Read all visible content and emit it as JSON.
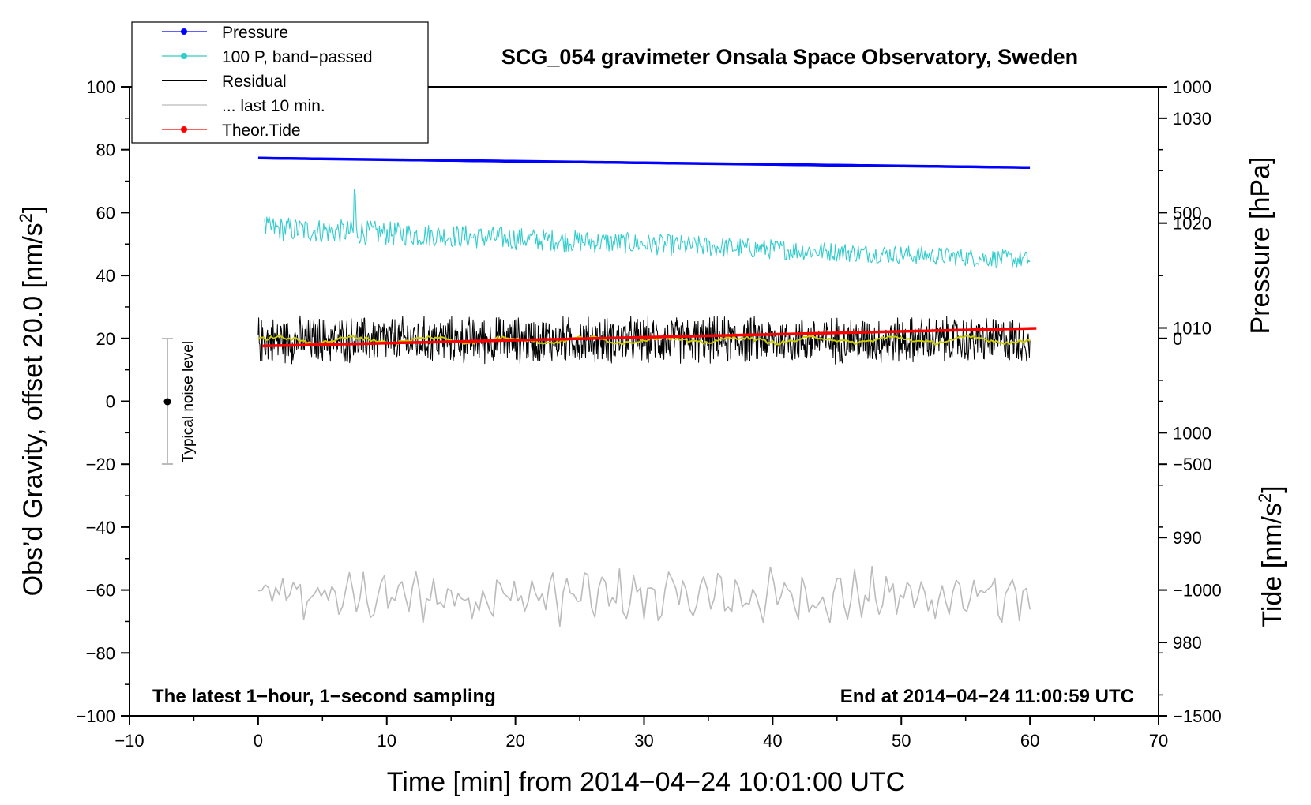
{
  "chart_data": {
    "type": "line",
    "title": "SCG_054 gravimeter Onsala Space Observatory, Sweden",
    "xlabel": "Time [min] from 2014−04−24 10:01:00 UTC",
    "ylabel_left_main": "Obs’d Gravity, offset 20.0 [nm/s",
    "ylabel_left_sup": "2",
    "ylabel_left_end": "]",
    "ylabel_right_top": "Pressure [hPa]",
    "ylabel_right_bottom_main": "Tide [nm/s",
    "ylabel_right_bottom_sup": "2",
    "ylabel_right_bottom_end": "]",
    "xlim": [
      -10,
      70
    ],
    "ylim": [
      -100,
      100
    ],
    "pressure_axis_range": [
      973,
      1033
    ],
    "tide_axis_range": [
      -1500,
      1000
    ],
    "x_ticks": [
      "−10",
      "0",
      "10",
      "20",
      "30",
      "40",
      "50",
      "60",
      "70"
    ],
    "x_tick_values": [
      -10,
      0,
      10,
      20,
      30,
      40,
      50,
      60,
      70
    ],
    "y_ticks": [
      "100",
      "80",
      "60",
      "40",
      "20",
      "0",
      "−20",
      "−40",
      "−60",
      "−80",
      "−100"
    ],
    "y_tick_values": [
      100,
      80,
      60,
      40,
      20,
      0,
      -20,
      -40,
      -60,
      -80,
      -100
    ],
    "pressure_ticks": [
      "1030",
      "1020",
      "1010",
      "1000",
      "990",
      "980"
    ],
    "pressure_tick_values": [
      1030,
      1020,
      1010,
      1000,
      990,
      980
    ],
    "tide_ticks": [
      "1000",
      "500",
      "0",
      "−500",
      "−1000",
      "−1500"
    ],
    "tide_tick_values": [
      1000,
      500,
      0,
      -500,
      -1000,
      -1500
    ],
    "legend": {
      "position": "top-left",
      "entries": [
        {
          "label": "Pressure",
          "color": "#0000ff",
          "marker": true
        },
        {
          "label": "100 P, band−passed",
          "color": "#33cccc",
          "marker": true
        },
        {
          "label": "Residual",
          "color": "#000000",
          "marker": false
        },
        {
          "label": "... last 10 min.",
          "color": "#bbbbbb",
          "marker": false
        },
        {
          "label": "Theor.Tide",
          "color": "#ff0000",
          "marker": true
        }
      ]
    },
    "annotations": {
      "left": "The latest 1−hour, 1−second sampling",
      "right": "End at 2014−04−24 11:00:59 UTC",
      "noise_label": "Typical noise level"
    },
    "noise_bar": {
      "x": -7,
      "center": 0,
      "low": -20,
      "high": 20
    },
    "series": [
      {
        "name": "Pressure",
        "color": "#0000ff",
        "axis": "pressure",
        "x_range": [
          0,
          60
        ],
        "start": 1026.2,
        "end": 1025.3
      },
      {
        "name": "100 P, band-passed",
        "color": "#33cccc",
        "axis": "gravity",
        "x_range": [
          0.5,
          60
        ],
        "start": 55,
        "end": 45,
        "amplitude": 4
      },
      {
        "name": "Residual",
        "color": "#000000",
        "axis": "gravity",
        "x_range": [
          0,
          60
        ],
        "mean": 19.5,
        "amplitude": 7
      },
      {
        "name": "Residual smoothed",
        "color": "#cccc00",
        "axis": "gravity",
        "x_range": [
          0,
          60
        ],
        "mean": 19.5,
        "amplitude": 1.2
      },
      {
        "name": "... last 10 min.",
        "color": "#bbbbbb",
        "axis": "gravity",
        "x_range": [
          0,
          60
        ],
        "mean": -62,
        "amplitude": 7
      },
      {
        "name": "Theor.Tide",
        "color": "#ff0000",
        "axis": "tide",
        "x_range": [
          0.3,
          60.5
        ],
        "start": -30,
        "end": 40
      }
    ]
  }
}
